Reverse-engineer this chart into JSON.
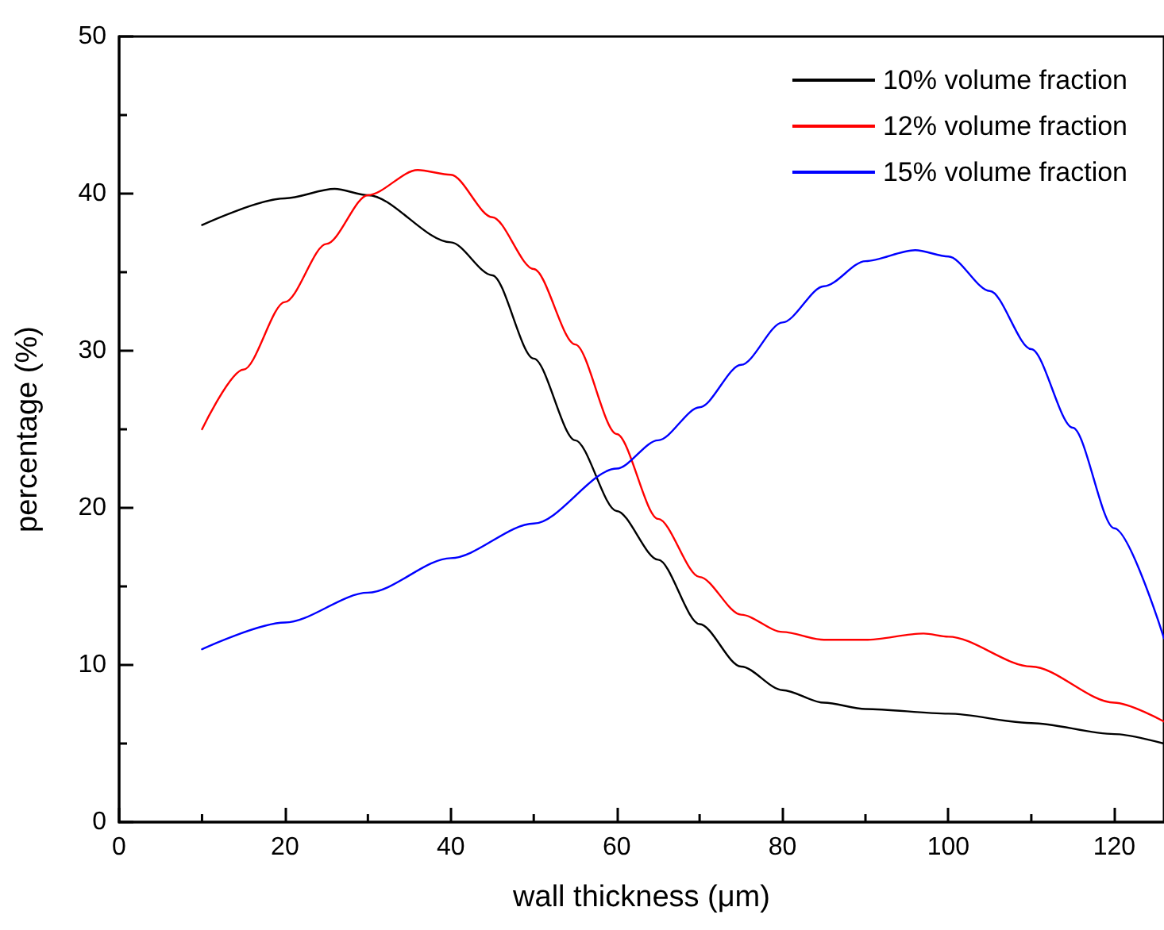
{
  "chart_data": {
    "type": "line",
    "xlabel": "wall thickness (μm)",
    "ylabel": "percentage (%)",
    "xlim": [
      0,
      126
    ],
    "xticks": [
      0,
      20,
      40,
      60,
      80,
      100,
      120
    ],
    "ylim": [
      0,
      50
    ],
    "yticks": [
      0,
      10,
      20,
      30,
      40,
      50
    ],
    "grid": false,
    "legend": "top right",
    "marker": "none",
    "line_style": "solid",
    "series": [
      {
        "name": "10% volume fraction",
        "color": "#000000",
        "x": [
          10,
          20,
          26,
          30,
          40,
          45,
          50,
          55,
          60,
          65,
          70,
          75,
          80,
          85,
          90,
          100,
          110,
          120,
          126
        ],
        "values": [
          38.0,
          39.7,
          40.3,
          39.9,
          36.9,
          34.8,
          29.5,
          24.3,
          19.8,
          16.7,
          12.6,
          9.9,
          8.4,
          7.6,
          7.2,
          6.9,
          6.3,
          5.6,
          5.0
        ]
      },
      {
        "name": "12% volume fraction",
        "color": "#ff0000",
        "x": [
          10,
          15,
          20,
          25,
          30,
          36,
          40,
          45,
          50,
          55,
          60,
          65,
          70,
          75,
          80,
          85,
          90,
          97,
          100,
          110,
          120,
          126
        ],
        "values": [
          25.0,
          28.8,
          33.1,
          36.8,
          39.9,
          41.5,
          41.2,
          38.5,
          35.2,
          30.4,
          24.7,
          19.3,
          15.6,
          13.2,
          12.1,
          11.6,
          11.6,
          12.0,
          11.8,
          9.9,
          7.6,
          6.4
        ]
      },
      {
        "name": "15% volume fraction",
        "color": "#0000ff",
        "x": [
          10,
          20,
          30,
          40,
          50,
          60,
          65,
          70,
          75,
          80,
          85,
          90,
          96,
          100,
          105,
          110,
          115,
          120,
          126
        ],
        "values": [
          11.0,
          12.7,
          14.6,
          16.8,
          19.0,
          22.5,
          24.3,
          26.4,
          29.1,
          31.8,
          34.1,
          35.7,
          36.4,
          36.0,
          33.8,
          30.1,
          25.1,
          18.7,
          11.7
        ]
      }
    ]
  }
}
